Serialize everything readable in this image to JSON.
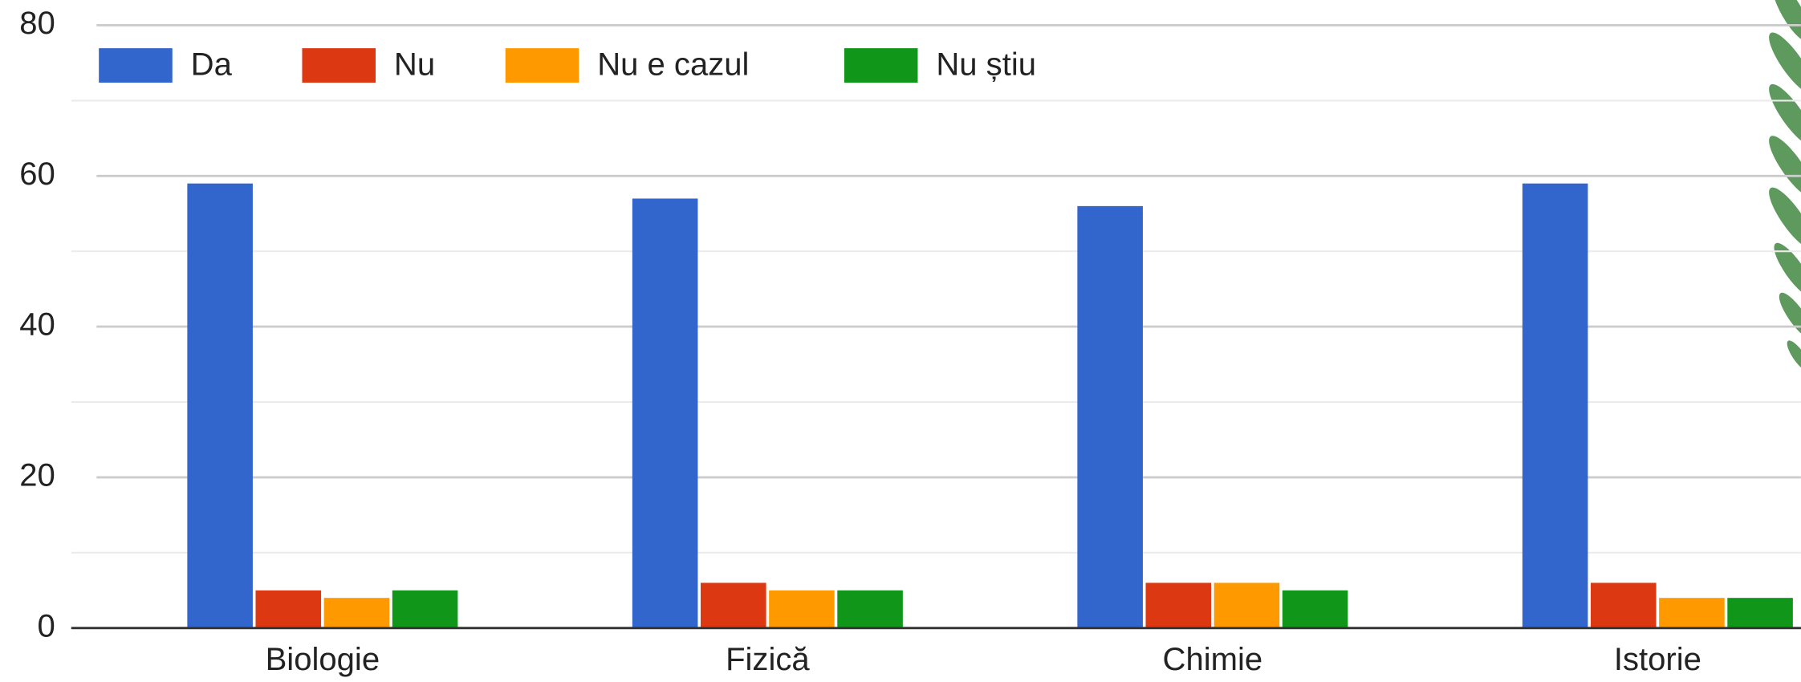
{
  "chart_data": {
    "type": "bar",
    "categories": [
      "Biologie",
      "Fizică",
      "Chimie",
      "Istorie"
    ],
    "series": [
      {
        "name": "Da",
        "color": "#3366cc",
        "values": [
          59,
          57,
          56,
          59
        ]
      },
      {
        "name": "Nu",
        "color": "#dc3912",
        "values": [
          5,
          6,
          6,
          6
        ]
      },
      {
        "name": "Nu e cazul",
        "color": "#ff9900",
        "values": [
          4,
          5,
          6,
          4
        ]
      },
      {
        "name": "Nu știu",
        "color": "#109618",
        "values": [
          5,
          5,
          5,
          4
        ]
      }
    ],
    "ylim": [
      0,
      80
    ],
    "yticks": [
      0,
      20,
      40,
      60,
      80
    ],
    "minor_yticks": [
      10,
      30,
      50,
      70
    ],
    "grid": true,
    "legend": "top"
  }
}
